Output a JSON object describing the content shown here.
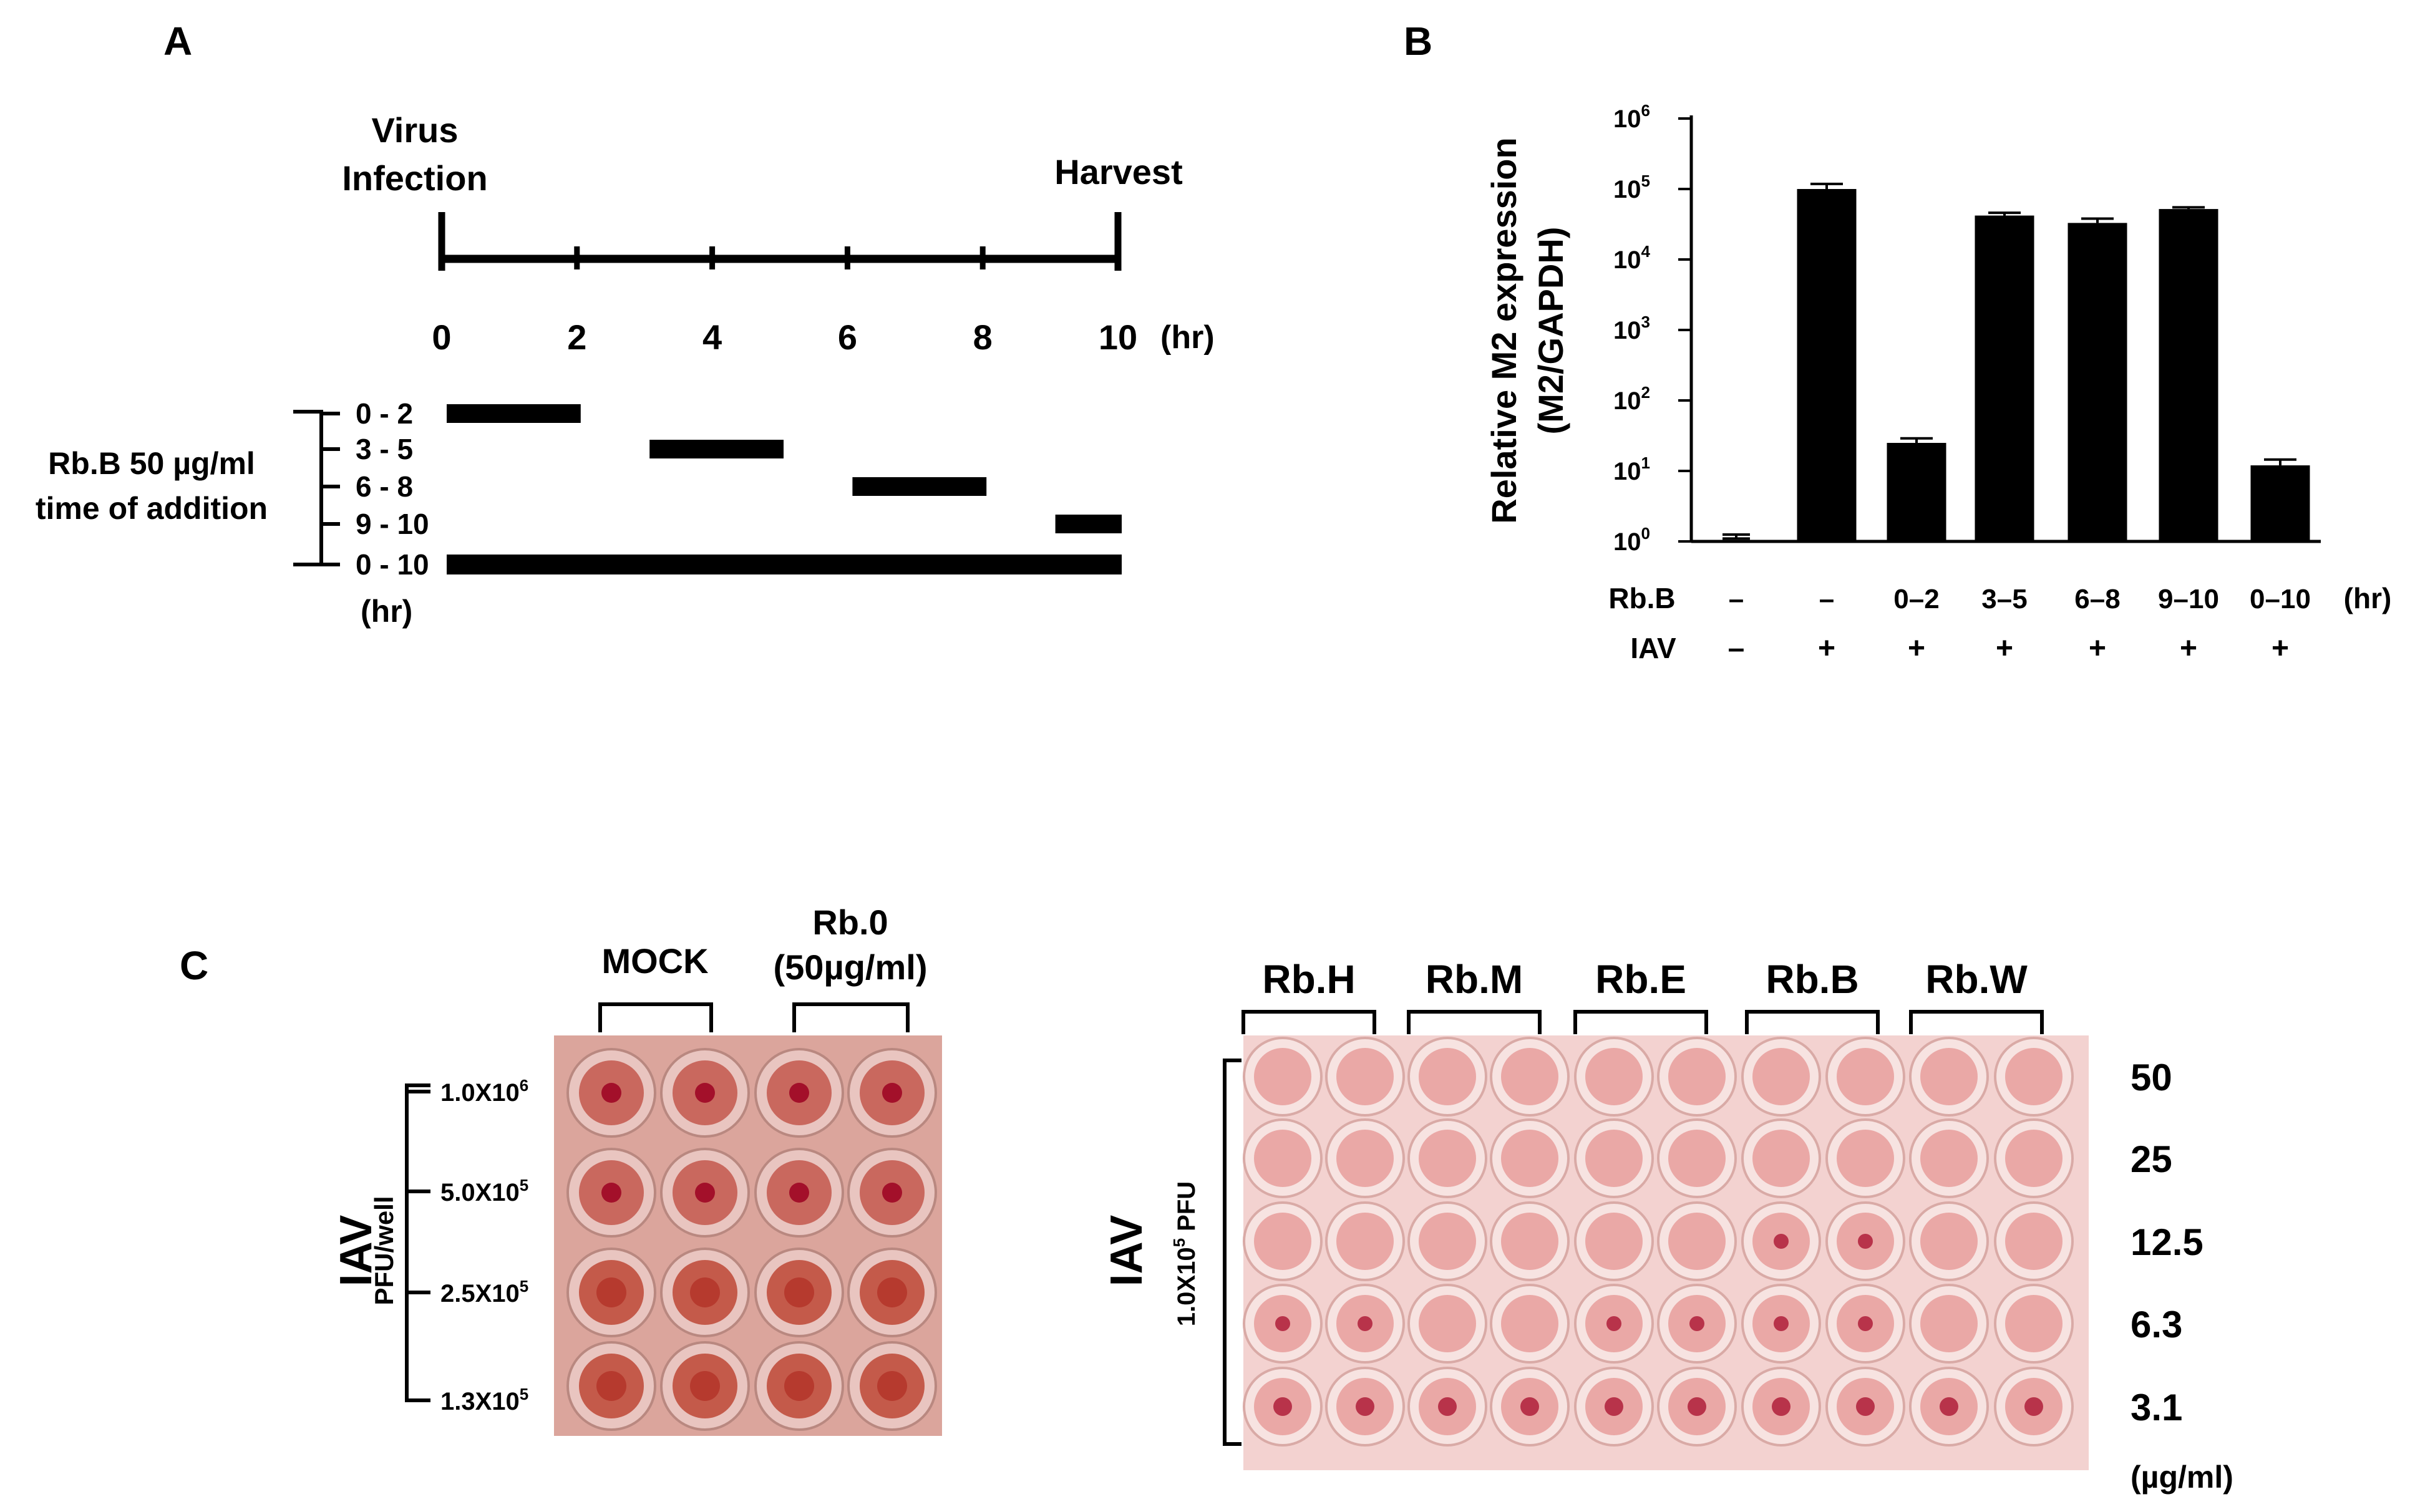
{
  "panel_a": {
    "letter": "A",
    "label_infection_1": "Virus",
    "label_infection_2": "Infection",
    "label_harvest": "Harvest",
    "ticks": [
      "0",
      "2",
      "4",
      "6",
      "8",
      "10"
    ],
    "unit": "(hr)",
    "side_label_1": "Rb.B 50 µg/ml",
    "side_label_2": "time of addition",
    "bottom_unit": "(hr)",
    "intervals": [
      {
        "label": "0 - 2",
        "start": 0,
        "end": 2
      },
      {
        "label": "3 - 5",
        "start": 3,
        "end": 5
      },
      {
        "label": "6 - 8",
        "start": 6,
        "end": 8
      },
      {
        "label": "9 - 10",
        "start": 9,
        "end": 10
      },
      {
        "label": "0 - 10",
        "start": 0,
        "end": 10
      }
    ]
  },
  "chart_data": {
    "type": "bar",
    "panel_letter": "B",
    "ylabel_1": "Relative M2 expression",
    "ylabel_2": "(M2/GAPDH)",
    "y_scale": "log",
    "ylim": [
      1,
      1000000
    ],
    "y_ticks": [
      {
        "base": "10",
        "exp": "0",
        "value": 1
      },
      {
        "base": "10",
        "exp": "1",
        "value": 10
      },
      {
        "base": "10",
        "exp": "2",
        "value": 100
      },
      {
        "base": "10",
        "exp": "3",
        "value": 1000
      },
      {
        "base": "10",
        "exp": "4",
        "value": 10000
      },
      {
        "base": "10",
        "exp": "5",
        "value": 100000
      },
      {
        "base": "10",
        "exp": "6",
        "value": 1000000
      }
    ],
    "row_labels": {
      "rbb": "Rb.B",
      "iav": "IAV",
      "unit": "(hr)"
    },
    "categories": [
      {
        "rbb": "–",
        "iav": "–",
        "value": 1.1,
        "err": 0.15
      },
      {
        "rbb": "–",
        "iav": "+",
        "value": 100000,
        "err": 18000
      },
      {
        "rbb": "0–2",
        "iav": "+",
        "value": 25,
        "err": 4
      },
      {
        "rbb": "3–5",
        "iav": "+",
        "value": 42000,
        "err": 4000
      },
      {
        "rbb": "6–8",
        "iav": "+",
        "value": 33000,
        "err": 5000
      },
      {
        "rbb": "9–10",
        "iav": "+",
        "value": 52000,
        "err": 3000
      },
      {
        "rbb": "0–10",
        "iav": "+",
        "value": 12,
        "err": 2.5
      }
    ],
    "bar_color": "#000000"
  },
  "panel_c": {
    "letter": "C",
    "left_plate": {
      "col_headers": {
        "mock": "MOCK",
        "rb0_1": "Rb.0",
        "rb0_2": "(50µg/ml)"
      },
      "side_label": "IAV",
      "side_sublabel": "PFU/well",
      "rows": [
        {
          "mant": "1.0X10",
          "exp": "6"
        },
        {
          "mant": "5.0X10",
          "exp": "5"
        },
        {
          "mant": "2.5X10",
          "exp": "5"
        },
        {
          "mant": "1.3X10",
          "exp": "5"
        }
      ]
    },
    "right_plate": {
      "col_headers": [
        "Rb.H",
        "Rb.M",
        "Rb.E",
        "Rb.B",
        "Rb.W"
      ],
      "side_label": "IAV",
      "side_sublabel_mant": "1.0X10",
      "side_sublabel_exp": "5",
      "side_sublabel_unit": " PFU",
      "row_labels": [
        "50",
        "25",
        "12.5",
        "6.3",
        "3.1"
      ],
      "unit": "(µg/ml)"
    }
  }
}
